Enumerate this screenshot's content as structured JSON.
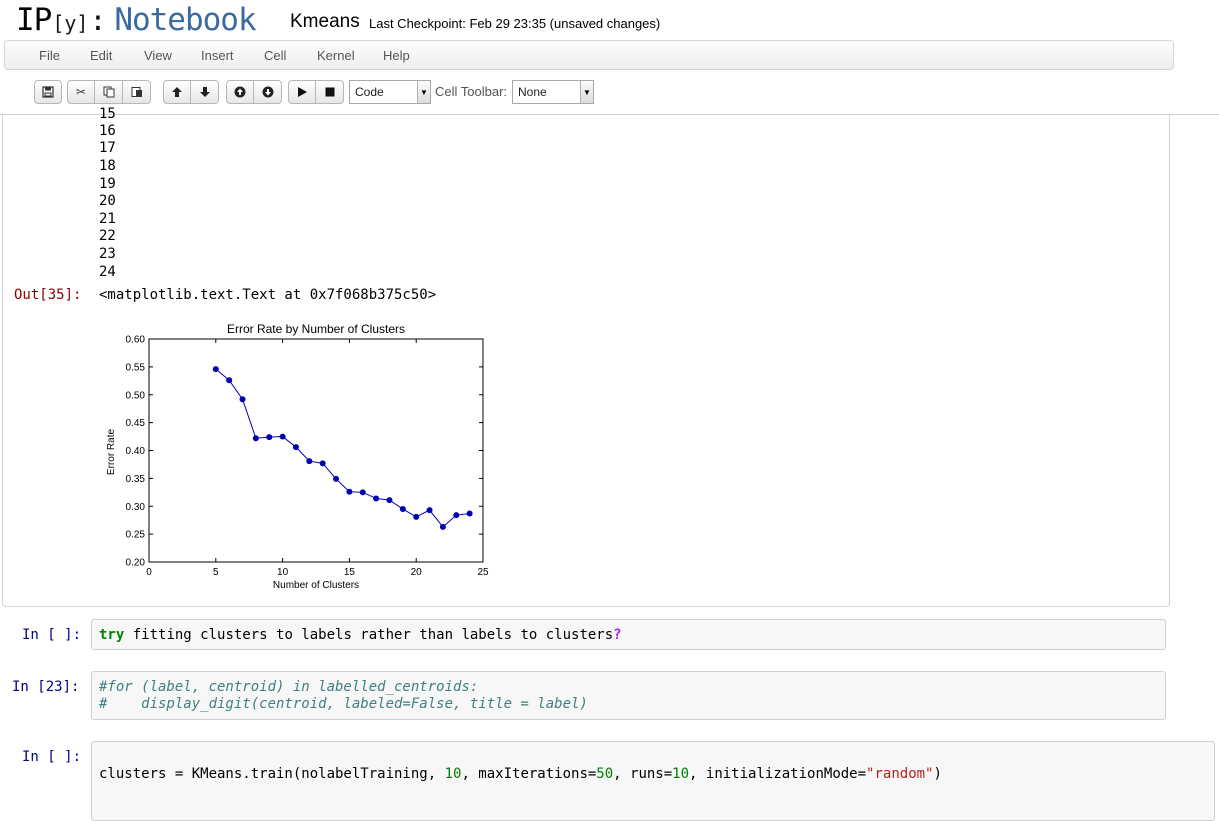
{
  "header": {
    "logo_ip": "IP",
    "logo_y": "[y]",
    "logo_colon": ":",
    "logo_notebook": "Notebook",
    "notebook_name": "Kmeans",
    "checkpoint": "Last Checkpoint: Feb 29 23:35 (unsaved changes)"
  },
  "menubar": [
    "File",
    "Edit",
    "View",
    "Insert",
    "Cell",
    "Kernel",
    "Help"
  ],
  "toolbar": {
    "cell_type": "Code",
    "cell_toolbar_label": "Cell Toolbar:",
    "cell_toolbar_value": "None"
  },
  "output_cell": {
    "number_lines": [
      "15",
      "16",
      "17",
      "18",
      "19",
      "20",
      "21",
      "22",
      "23",
      "24"
    ],
    "out_prompt": "Out[35]:",
    "out_text": "<matplotlib.text.Text at 0x7f068b375c50>"
  },
  "chart_data": {
    "type": "line",
    "title": "Error Rate by Number of Clusters",
    "xlabel": "Number of Clusters",
    "ylabel": "Error Rate",
    "xlim": [
      0,
      25
    ],
    "ylim": [
      0.2,
      0.6
    ],
    "xticks": [
      "0",
      "5",
      "10",
      "15",
      "20",
      "25"
    ],
    "yticks": [
      "0.20",
      "0.25",
      "0.30",
      "0.35",
      "0.40",
      "0.45",
      "0.50",
      "0.55",
      "0.60"
    ],
    "grid": false,
    "color": "#0000b0",
    "x": [
      5,
      6,
      7,
      8,
      9,
      10,
      11,
      12,
      13,
      14,
      15,
      16,
      17,
      18,
      19,
      20,
      21,
      22,
      23,
      24
    ],
    "y": [
      0.546,
      0.526,
      0.492,
      0.422,
      0.424,
      0.425,
      0.406,
      0.381,
      0.377,
      0.349,
      0.326,
      0.325,
      0.314,
      0.311,
      0.295,
      0.281,
      0.293,
      0.263,
      0.284,
      0.287
    ]
  },
  "cells": [
    {
      "prompt": "In [ ]:",
      "tokens": [
        [
          "kw",
          "try"
        ],
        [
          "plain",
          " fitting clusters to labels rather than labels to clusters"
        ],
        [
          "q",
          "?"
        ]
      ]
    },
    {
      "prompt": "In [23]:",
      "line1": "#for (label, centroid) in labelled_centroids:",
      "line2": "#    display_digit(centroid, labeled=False, title = label)"
    },
    {
      "prompt": "In [ ]:",
      "tokens": [
        [
          "plain",
          "clusters = KMeans.train(nolabelTraining, "
        ],
        [
          "num",
          "10"
        ],
        [
          "plain",
          ", maxIterations="
        ],
        [
          "num",
          "50"
        ],
        [
          "plain",
          ", runs="
        ],
        [
          "num",
          "10"
        ],
        [
          "plain",
          ", initializationMode="
        ],
        [
          "str",
          "\"random\""
        ],
        [
          "plain",
          ")"
        ]
      ]
    }
  ]
}
